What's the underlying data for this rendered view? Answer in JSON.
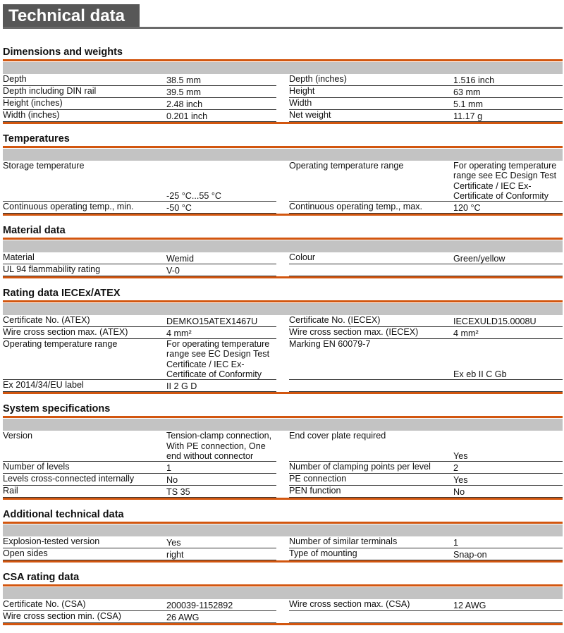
{
  "title": "Technical data",
  "accent_color": "#d2560f",
  "sections": [
    {
      "title": "Dimensions and weights",
      "rows": [
        [
          "Depth",
          "38.5 mm",
          "Depth (inches)",
          "1.516 inch"
        ],
        [
          "Depth including DIN rail",
          "39.5 mm",
          "Height",
          "63 mm"
        ],
        [
          "Height (inches)",
          "2.48 inch",
          "Width",
          "5.1 mm"
        ],
        [
          "Width (inches)",
          "0.201 inch",
          "Net weight",
          "11.17 g"
        ]
      ]
    },
    {
      "title": "Temperatures",
      "rows": [
        [
          "Storage temperature",
          "-25 °C...55 °C",
          "Operating temperature range",
          "For operating temperature range see EC Design Test Certificate / IEC Ex-Certificate of Conformity"
        ],
        [
          "Continuous operating temp., min.",
          "-50 °C",
          "Continuous operating temp., max.",
          "120 °C"
        ]
      ]
    },
    {
      "title": "Material data",
      "rows": [
        [
          "Material",
          "Wemid",
          "Colour",
          "Green/yellow"
        ],
        [
          "UL 94 flammability rating",
          "V-0",
          "",
          ""
        ]
      ]
    },
    {
      "title": "Rating data IECEx/ATEX",
      "rows": [
        [
          "Certificate No. (ATEX)",
          "DEMKO15ATEX1467U",
          "Certificate No. (IECEX)",
          "IECEXULD15.0008U"
        ],
        [
          "Wire cross section max. (ATEX)",
          "4 mm²",
          "Wire cross section max. (IECEX)",
          "4 mm²"
        ],
        [
          "Operating temperature range",
          "For operating temperature range see EC Design Test Certificate / IEC Ex-Certificate of Conformity",
          "Marking EN 60079-7",
          "Ex eb II C Gb"
        ],
        [
          "Ex 2014/34/EU label",
          "II 2 G D",
          "",
          ""
        ]
      ]
    },
    {
      "title": "System specifications",
      "rows": [
        [
          "Version",
          "Tension-clamp connection, With PE connection, One end without connector",
          "End cover plate required",
          "Yes"
        ],
        [
          "Number of levels",
          "1",
          "Number of clamping points per level",
          "2"
        ],
        [
          "Levels cross-connected internally",
          "No",
          "PE connection",
          "Yes"
        ],
        [
          "Rail",
          "TS 35",
          "PEN function",
          "No"
        ]
      ]
    },
    {
      "title": "Additional technical data",
      "rows": [
        [
          "Explosion-tested version",
          "Yes",
          "Number of similar terminals",
          "1"
        ],
        [
          "Open sides",
          "right",
          "Type of mounting",
          "Snap-on"
        ]
      ]
    },
    {
      "title": "CSA rating data",
      "rows": [
        [
          "Certificate No. (CSA)",
          "200039-1152892",
          "Wire cross section max. (CSA)",
          "12 AWG"
        ],
        [
          "Wire cross section min. (CSA)",
          "26 AWG",
          "",
          ""
        ]
      ]
    }
  ]
}
